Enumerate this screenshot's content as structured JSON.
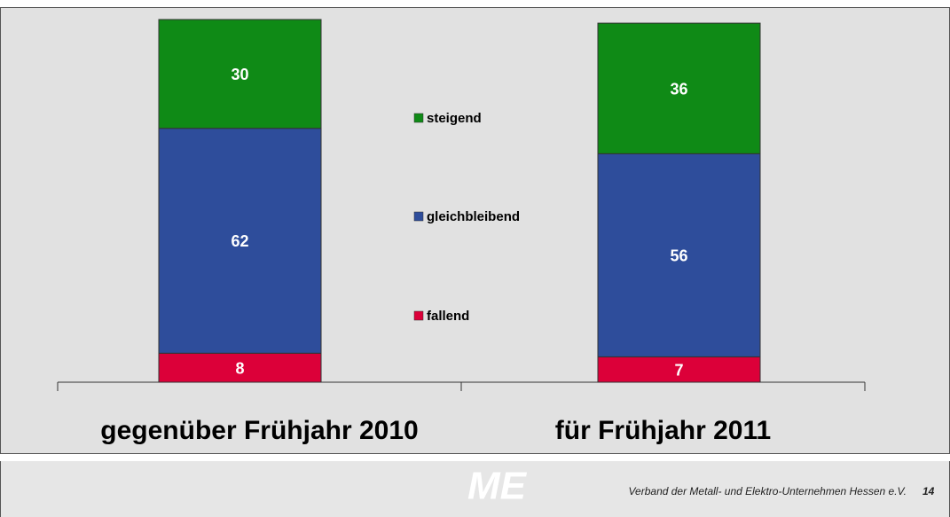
{
  "chart_data": {
    "type": "stacked_bar",
    "categories": [
      "gegenüber Frühjahr 2010",
      "für Frühjahr 2011"
    ],
    "series": [
      {
        "name": "fallend",
        "color": "#dc0039",
        "values": [
          8,
          7
        ]
      },
      {
        "name": "gleichbleibend",
        "color": "#2e4d9b",
        "values": [
          62,
          56
        ]
      },
      {
        "name": "steigend",
        "color": "#0f8a16",
        "values": [
          30,
          36
        ]
      }
    ],
    "ylim": [
      0,
      100
    ]
  },
  "footer": {
    "logo": "ME",
    "text": "Verband der Metall- und Elektro-Unternehmen Hessen e.V.",
    "page": "14"
  }
}
